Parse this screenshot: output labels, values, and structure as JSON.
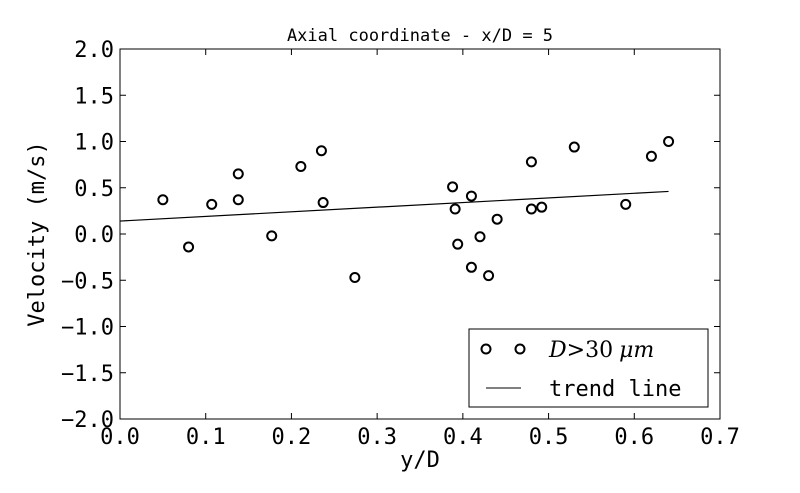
{
  "chart_data": {
    "type": "scatter",
    "title": "Axial coordinate - x/D = 5",
    "xlabel": "y/D",
    "ylabel": "Velocity (m/s)",
    "xlim": [
      0.0,
      0.7
    ],
    "ylim": [
      -2.0,
      2.0
    ],
    "x_ticks": [
      "0.0",
      "0.1",
      "0.2",
      "0.3",
      "0.4",
      "0.5",
      "0.6",
      "0.7"
    ],
    "y_ticks": [
      "2.0",
      "1.5",
      "1.0",
      "0.5",
      "0.0",
      "−0.5",
      "−1.0",
      "−1.5",
      "−2.0"
    ],
    "grid": false,
    "legend_position": "lower-right",
    "series": [
      {
        "name": "D > 30 μm",
        "kind": "scatter",
        "marker": "open-circle",
        "color": "#000000",
        "points": [
          [
            0.05,
            0.37
          ],
          [
            0.08,
            -0.14
          ],
          [
            0.107,
            0.32
          ],
          [
            0.138,
            0.65
          ],
          [
            0.138,
            0.37
          ],
          [
            0.177,
            -0.02
          ],
          [
            0.211,
            0.73
          ],
          [
            0.235,
            0.9
          ],
          [
            0.237,
            0.34
          ],
          [
            0.274,
            -0.47
          ],
          [
            0.388,
            0.51
          ],
          [
            0.391,
            0.27
          ],
          [
            0.394,
            -0.11
          ],
          [
            0.41,
            0.41
          ],
          [
            0.41,
            -0.36
          ],
          [
            0.42,
            -0.03
          ],
          [
            0.43,
            -0.45
          ],
          [
            0.44,
            0.16
          ],
          [
            0.48,
            0.78
          ],
          [
            0.48,
            0.27
          ],
          [
            0.492,
            0.29
          ],
          [
            0.53,
            0.94
          ],
          [
            0.59,
            0.32
          ],
          [
            0.62,
            0.84
          ],
          [
            0.64,
            1.0
          ]
        ]
      },
      {
        "name": "trend line",
        "kind": "line",
        "color": "#000000",
        "x": [
          0.0,
          0.64
        ],
        "y": [
          0.14,
          0.46
        ]
      }
    ],
    "legend": {
      "scatter_label_prefix": "D",
      "scatter_label_op": ">30",
      "scatter_label_unit": "μm",
      "line_label": "trend line"
    }
  }
}
